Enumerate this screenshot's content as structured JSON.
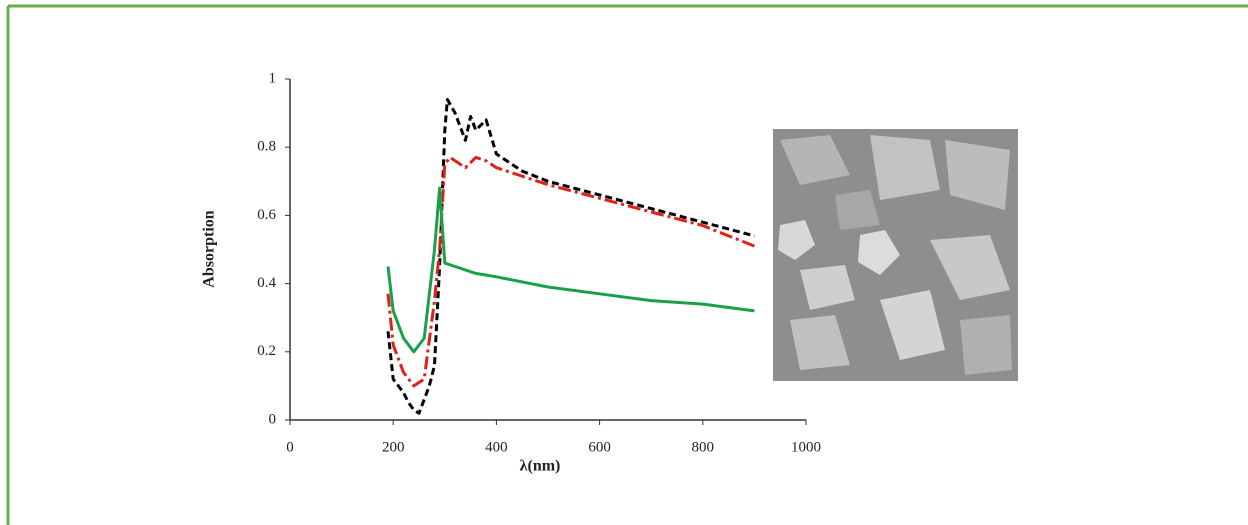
{
  "chart_data": {
    "type": "line",
    "x_label": "λ(nm)",
    "y_label": "Absorption",
    "xlim": [
      0,
      1000
    ],
    "xticks": [
      0,
      200,
      400,
      600,
      800,
      1000
    ],
    "ylim": [
      0,
      1
    ],
    "yticks": [
      0,
      0.2,
      0.4,
      0.6,
      0.8,
      1
    ],
    "series": [
      {
        "color": "#000000",
        "dash": "dashed",
        "x": [
          190,
          200,
          210,
          220,
          230,
          240,
          250,
          260,
          270,
          280,
          290,
          300,
          305,
          320,
          340,
          350,
          360,
          380,
          400,
          450,
          500,
          600,
          700,
          800,
          900
        ],
        "values": [
          0.26,
          0.12,
          0.1,
          0.08,
          0.05,
          0.03,
          0.02,
          0.06,
          0.1,
          0.16,
          0.45,
          0.85,
          0.94,
          0.9,
          0.82,
          0.89,
          0.85,
          0.88,
          0.78,
          0.73,
          0.7,
          0.66,
          0.62,
          0.58,
          0.54
        ]
      },
      {
        "color": "#e0201b",
        "dash": "dashdot",
        "x": [
          190,
          200,
          220,
          240,
          260,
          280,
          290,
          300,
          310,
          340,
          360,
          380,
          400,
          500,
          600,
          700,
          800,
          900
        ],
        "values": [
          0.37,
          0.22,
          0.14,
          0.1,
          0.12,
          0.35,
          0.5,
          0.75,
          0.77,
          0.74,
          0.77,
          0.76,
          0.74,
          0.69,
          0.65,
          0.61,
          0.57,
          0.51
        ]
      },
      {
        "color": "#1aa04a",
        "dash": "solid",
        "x": [
          190,
          200,
          220,
          240,
          260,
          280,
          290,
          300,
          320,
          360,
          400,
          500,
          600,
          700,
          800,
          900
        ],
        "values": [
          0.45,
          0.32,
          0.24,
          0.2,
          0.24,
          0.5,
          0.68,
          0.46,
          0.45,
          0.43,
          0.42,
          0.39,
          0.37,
          0.35,
          0.34,
          0.32
        ]
      }
    ]
  }
}
